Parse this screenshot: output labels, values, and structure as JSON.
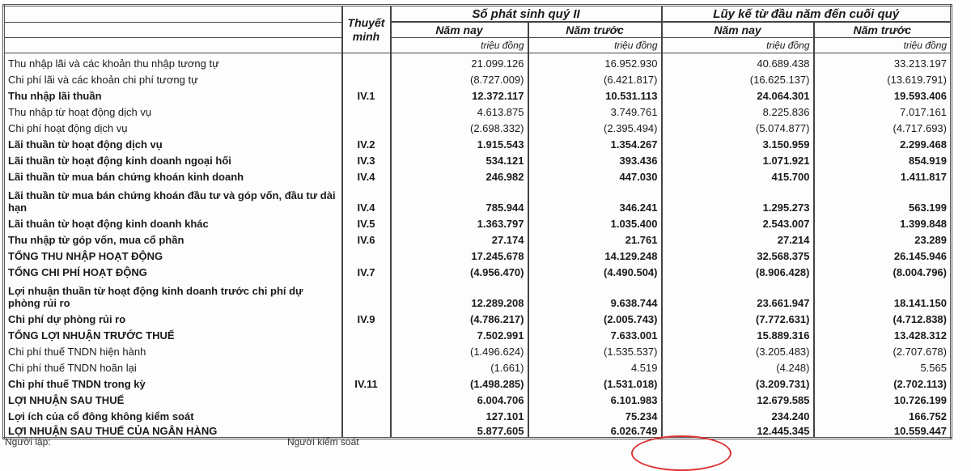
{
  "header": {
    "note_col": "Thuyết minh",
    "group_quarter": "Số phát sinh quý II",
    "group_ytd": "Lũy kế từ đầu năm đến cuối quý",
    "this_year": "Năm nay",
    "last_year": "Năm trước",
    "unit": "triệu đồng"
  },
  "rows": [
    {
      "label": "Thu nhập lãi và các khoản thu nhập tương tự",
      "note": "",
      "values": [
        "21.099.126",
        "16.952.930",
        "40.689.438",
        "33.213.197"
      ],
      "bold": false
    },
    {
      "label": "Chi phí lãi và các khoản chi phí tương tự",
      "note": "",
      "values": [
        "(8.727.009)",
        "(6.421.817)",
        "(16.625.137)",
        "(13.619.791)"
      ],
      "bold": false
    },
    {
      "label": "Thu nhập lãi thuần",
      "note": "IV.1",
      "values": [
        "12.372.117",
        "10.531.113",
        "24.064.301",
        "19.593.406"
      ],
      "bold": true
    },
    {
      "label": "Thu nhập từ hoạt động dịch vụ",
      "note": "",
      "values": [
        "4.613.875",
        "3.749.761",
        "8.225.836",
        "7.017.161"
      ],
      "bold": false
    },
    {
      "label": "Chi phí hoạt động dịch vụ",
      "note": "",
      "values": [
        "(2.698.332)",
        "(2.395.494)",
        "(5.074.877)",
        "(4.717.693)"
      ],
      "bold": false
    },
    {
      "label": "Lãi thuần từ hoạt động dịch vụ",
      "note": "IV.2",
      "values": [
        "1.915.543",
        "1.354.267",
        "3.150.959",
        "2.299.468"
      ],
      "bold": true
    },
    {
      "label": "Lãi thuần từ hoạt động kinh doanh ngoại hối",
      "note": "IV.3",
      "values": [
        "534.121",
        "393.436",
        "1.071.921",
        "854.919"
      ],
      "bold": true
    },
    {
      "label": "Lãi thuần từ mua bán chứng khoán kinh doanh",
      "note": "IV.4",
      "values": [
        "246.982",
        "447.030",
        "415.700",
        "1.411.817"
      ],
      "bold": true
    },
    {
      "label": "Lãi thuần từ mua bán chứng khoán đầu tư và góp vốn, đầu tư dài hạn",
      "note": "IV.4",
      "values": [
        "785.944",
        "346.241",
        "1.295.273",
        "563.199"
      ],
      "bold": true,
      "tall": true
    },
    {
      "label": "Lãi thuân từ hoạt động kinh doanh khác",
      "note": "IV.5",
      "values": [
        "1.363.797",
        "1.035.400",
        "2.543.007",
        "1.399.848"
      ],
      "bold": true
    },
    {
      "label": "Thu nhập từ góp vốn, mua cổ phần",
      "note": "IV.6",
      "values": [
        "27.174",
        "21.761",
        "27.214",
        "23.289"
      ],
      "bold": true
    },
    {
      "label": "TỔNG THU NHẬP HOẠT ĐỘNG",
      "note": "",
      "values": [
        "17.245.678",
        "14.129.248",
        "32.568.375",
        "26.145.946"
      ],
      "bold": true
    },
    {
      "label": "TỔNG CHI PHÍ HOẠT ĐỘNG",
      "note": "IV.7",
      "values": [
        "(4.956.470)",
        "(4.490.504)",
        "(8.906.428)",
        "(8.004.796)"
      ],
      "bold": true
    },
    {
      "label": "Lợi nhuận thuần từ hoạt động kinh doanh trước chi phí dự phòng rủi ro",
      "note": "",
      "values": [
        "12.289.208",
        "9.638.744",
        "23.661.947",
        "18.141.150"
      ],
      "bold": true,
      "tall": true
    },
    {
      "label": "Chi phí dự phòng rủi ro",
      "note": "IV.9",
      "values": [
        "(4.786.217)",
        "(2.005.743)",
        "(7.772.631)",
        "(4.712.838)"
      ],
      "bold": true
    },
    {
      "label": "TỔNG LỢI NHUẬN TRƯỚC THUẾ",
      "note": "",
      "values": [
        "7.502.991",
        "7.633.001",
        "15.889.316",
        "13.428.312"
      ],
      "bold": true
    },
    {
      "label": "Chi phí thuế TNDN hiện hành",
      "note": "",
      "values": [
        "(1.496.624)",
        "(1.535.537)",
        "(3.205.483)",
        "(2.707.678)"
      ],
      "bold": false
    },
    {
      "label": "Chi phí thuế TNDN hoãn lại",
      "note": "",
      "values": [
        "(1.661)",
        "4.519",
        "(4.248)",
        "5.565"
      ],
      "bold": false
    },
    {
      "label": "Chi phí thuế TNDN trong kỳ",
      "note": "IV.11",
      "values": [
        "(1.498.285)",
        "(1.531.018)",
        "(3.209.731)",
        "(2.702.113)"
      ],
      "bold": true
    },
    {
      "label": "LỢI NHUẬN SAU THUẾ",
      "note": "",
      "values": [
        "6.004.706",
        "6.101.983",
        "12.679.585",
        "10.726.199"
      ],
      "bold": true
    },
    {
      "label": "Lợi ích của cổ đông không kiểm soát",
      "note": "",
      "values": [
        "127.101",
        "75.234",
        "234.240",
        "166.752"
      ],
      "bold": true
    },
    {
      "label": "LỢI NHUẬN SAU THUẾ CỦA NGÂN HÀNG",
      "note": "",
      "values": [
        "5.877.605",
        "6.026.749",
        "12.445.345",
        "10.559.447"
      ],
      "bold": true
    }
  ],
  "footer": {
    "prepared_by": "Người lập:",
    "controlled_by": "Người kiểm soát"
  }
}
